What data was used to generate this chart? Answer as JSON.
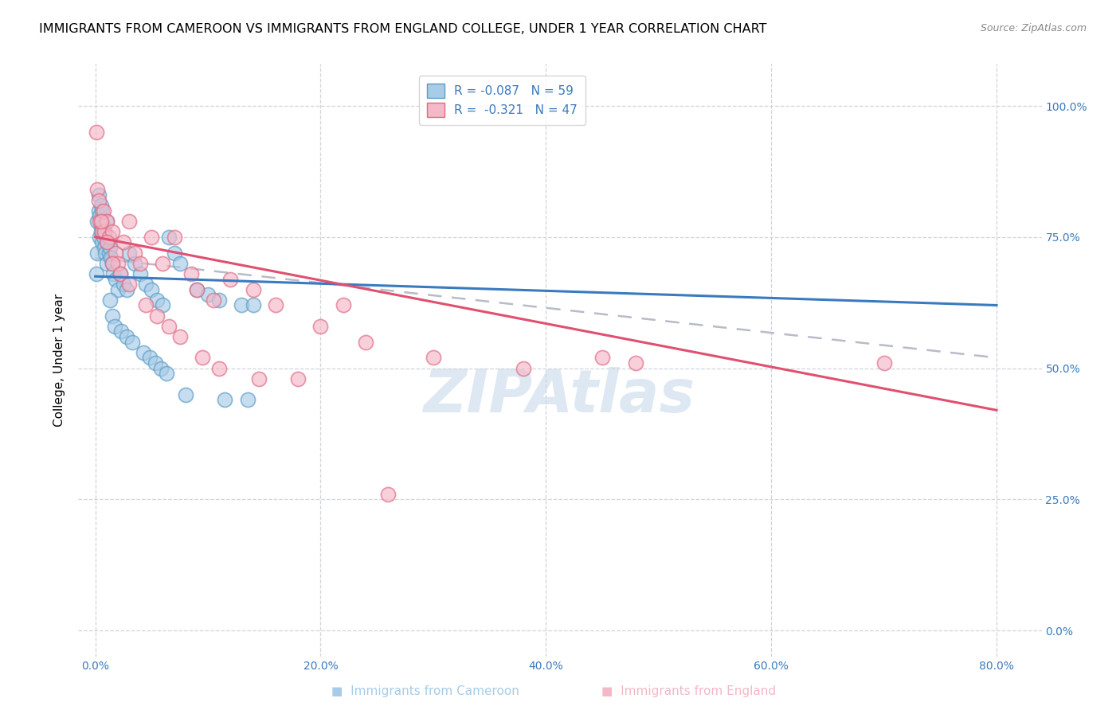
{
  "title": "IMMIGRANTS FROM CAMEROON VS IMMIGRANTS FROM ENGLAND COLLEGE, UNDER 1 YEAR CORRELATION CHART",
  "source": "Source: ZipAtlas.com",
  "ylabel": "College, Under 1 year",
  "x_tick_labels": [
    "0.0%",
    "20.0%",
    "40.0%",
    "60.0%",
    "80.0%"
  ],
  "x_tick_values": [
    0.0,
    20.0,
    40.0,
    60.0,
    80.0
  ],
  "y_tick_labels": [
    "0.0%",
    "25.0%",
    "50.0%",
    "75.0%",
    "100.0%"
  ],
  "y_tick_values": [
    0.0,
    25.0,
    50.0,
    75.0,
    100.0
  ],
  "xlim": [
    -1.5,
    84
  ],
  "ylim": [
    -5,
    108
  ],
  "legend_label1": "Immigrants from Cameroon",
  "legend_label2": "Immigrants from England",
  "R1": -0.087,
  "N1": 59,
  "R2": -0.321,
  "N2": 47,
  "color1": "#a8cce8",
  "color2": "#f4b8c8",
  "edge_color1": "#5a9cc5",
  "edge_color2": "#e06880",
  "trendline1_color": "#3a7abf",
  "trendline2_color": "#e05070",
  "dashed_line_color": "#b8bcc8",
  "background_color": "#ffffff",
  "title_fontsize": 11.5,
  "axis_label_fontsize": 11,
  "tick_fontsize": 10,
  "watermark": "ZIPAtlas",
  "trendline1_x0": 0.0,
  "trendline1_y0": 67.5,
  "trendline1_x1": 80.0,
  "trendline1_y1": 62.0,
  "trendline2_x0": 0.0,
  "trendline2_y0": 75.0,
  "trendline2_x1": 80.0,
  "trendline2_y1": 42.0,
  "dashed_x0": 0.0,
  "dashed_y0": 71.0,
  "dashed_x1": 80.0,
  "dashed_y1": 52.0,
  "cameroon_x": [
    0.1,
    0.2,
    0.2,
    0.3,
    0.3,
    0.4,
    0.4,
    0.5,
    0.5,
    0.5,
    0.6,
    0.6,
    0.7,
    0.7,
    0.8,
    0.8,
    0.9,
    1.0,
    1.0,
    1.1,
    1.2,
    1.3,
    1.4,
    1.5,
    1.6,
    1.8,
    2.0,
    2.2,
    2.5,
    2.8,
    3.0,
    3.5,
    4.0,
    4.5,
    5.0,
    5.5,
    6.0,
    6.5,
    7.0,
    7.5,
    8.0,
    9.0,
    10.0,
    11.0,
    11.5,
    13.0,
    13.5,
    14.0,
    1.3,
    1.5,
    1.7,
    2.3,
    2.8,
    3.3,
    4.3,
    4.8,
    5.3,
    5.8,
    6.3
  ],
  "cameroon_y": [
    68.0,
    72.0,
    78.0,
    80.0,
    83.0,
    75.0,
    79.0,
    77.0,
    76.0,
    81.0,
    74.0,
    80.0,
    75.0,
    77.0,
    73.0,
    76.0,
    72.0,
    78.0,
    70.0,
    74.0,
    72.0,
    73.0,
    71.0,
    70.0,
    68.0,
    67.0,
    65.0,
    68.0,
    66.0,
    65.0,
    72.0,
    70.0,
    68.0,
    66.0,
    65.0,
    63.0,
    62.0,
    75.0,
    72.0,
    70.0,
    45.0,
    65.0,
    64.0,
    63.0,
    44.0,
    62.0,
    44.0,
    62.0,
    63.0,
    60.0,
    58.0,
    57.0,
    56.0,
    55.0,
    53.0,
    52.0,
    51.0,
    50.0,
    49.0
  ],
  "england_x": [
    0.1,
    0.2,
    0.3,
    0.4,
    0.6,
    0.7,
    0.8,
    1.0,
    1.2,
    1.5,
    1.8,
    2.0,
    2.5,
    3.0,
    3.5,
    4.0,
    5.0,
    6.0,
    7.0,
    8.5,
    9.0,
    10.5,
    12.0,
    14.0,
    16.0,
    20.0,
    22.0,
    24.0,
    30.0,
    38.0,
    45.0,
    48.0,
    70.0,
    0.5,
    1.0,
    1.5,
    2.2,
    3.0,
    4.5,
    5.5,
    6.5,
    7.5,
    9.5,
    11.0,
    14.5,
    18.0,
    26.0
  ],
  "england_y": [
    95.0,
    84.0,
    82.0,
    78.0,
    76.0,
    80.0,
    76.0,
    78.0,
    75.0,
    76.0,
    72.0,
    70.0,
    74.0,
    78.0,
    72.0,
    70.0,
    75.0,
    70.0,
    75.0,
    68.0,
    65.0,
    63.0,
    67.0,
    65.0,
    62.0,
    58.0,
    62.0,
    55.0,
    52.0,
    50.0,
    52.0,
    51.0,
    51.0,
    78.0,
    74.0,
    70.0,
    68.0,
    66.0,
    62.0,
    60.0,
    58.0,
    56.0,
    52.0,
    50.0,
    48.0,
    48.0,
    26.0
  ]
}
